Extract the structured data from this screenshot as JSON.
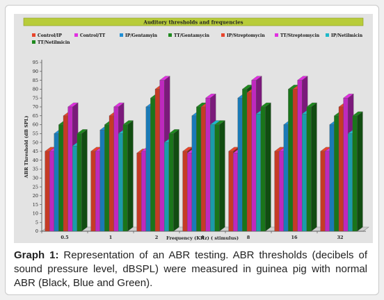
{
  "caption": {
    "label": "Graph 1:",
    "text": "Representation of an ABR testing. ABR thresholds (decibels of sound pressure level, dBSPL) were measured in guinea pig with normal ABR (Black, Blue and Green)."
  },
  "chart_data": {
    "type": "bar",
    "title": "Auditory thresholds and frequencies",
    "xlabel": "Frequency (KHz) ( stimulus)",
    "ylabel": "ABR Threshold (dB SPL)",
    "ylim": [
      0,
      95
    ],
    "yticks": [
      0,
      5,
      10,
      15,
      20,
      25,
      30,
      35,
      40,
      45,
      50,
      55,
      60,
      65,
      70,
      75,
      80,
      85,
      90,
      95
    ],
    "grid": false,
    "legend_position": "top",
    "categories": [
      "0.5",
      "1",
      "2",
      "4",
      "8",
      "16",
      "32"
    ],
    "series": [
      {
        "name": "Control/IP",
        "color": "#e8452c",
        "values": [
          45,
          45,
          44,
          45,
          45,
          45,
          45
        ]
      },
      {
        "name": "Control/TT",
        "color": "#e030e0",
        "values": [
          45,
          45,
          45,
          44,
          44,
          45,
          45
        ]
      },
      {
        "name": "IP/Gentamyin",
        "color": "#1f8fd6",
        "values": [
          55,
          57,
          70,
          65,
          75,
          60,
          60
        ]
      },
      {
        "name": "TT/Gentamycin",
        "color": "#1e8a1e",
        "values": [
          60,
          60,
          75,
          70,
          80,
          80,
          65
        ]
      },
      {
        "name": "IP/Streptomycin",
        "color": "#e8452c",
        "values": [
          65,
          65,
          80,
          70,
          78,
          80,
          70
        ]
      },
      {
        "name": "TT/Streptomycin",
        "color": "#e030e0",
        "values": [
          70,
          70,
          85,
          75,
          85,
          85,
          75
        ]
      },
      {
        "name": "IP/Netilmicin",
        "color": "#1fb8c8",
        "values": [
          48,
          55,
          50,
          60,
          66,
          66,
          55
        ]
      },
      {
        "name": "TT/Netilmicin",
        "color": "#1e8a1e",
        "values": [
          55,
          60,
          55,
          60,
          70,
          70,
          65
        ]
      }
    ]
  }
}
